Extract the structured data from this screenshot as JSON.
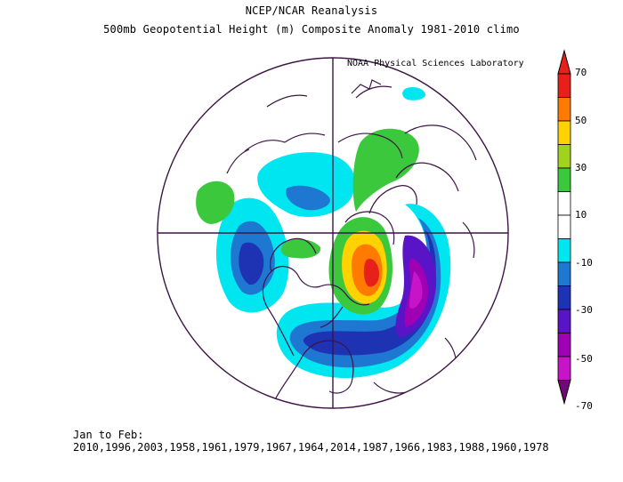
{
  "header": {
    "line1": "NCEP/NCAR Reanalysis",
    "line2": "500mb Geopotential Height (m) Composite Anomaly 1981-2010 climo",
    "credit": "NOAA Physical Sciences Laboratory"
  },
  "footer": {
    "text": "Jan to Feb: 2010,1996,2003,1958,1961,1979,1967,1964,2014,1987,1966,1983,1988,1960,1978"
  },
  "colorbar": {
    "labels": [
      "70",
      "50",
      "30",
      "10",
      "-10",
      "-30",
      "-50",
      "-70"
    ],
    "colors": [
      "#e8201c",
      "#ff7a00",
      "#ffd200",
      "#a0d21e",
      "#3cc83c",
      "#ffffff",
      "#ffffff",
      "#00e6f0",
      "#1e78d2",
      "#1e32b4",
      "#5a14c8",
      "#a000b4",
      "#c814c8"
    ],
    "max_color": "#e8201c",
    "min_color": "#6e0a78"
  },
  "map": {
    "projection": "north-polar-stereographic",
    "border_color": "#3c1446",
    "palette": {
      "light_blue": "#00e6f0",
      "blue": "#1e78d2",
      "dark_blue": "#1e32b4",
      "purple": "#5a14c8",
      "violet": "#a000b4",
      "magenta": "#c814c8",
      "green": "#3cc83c",
      "yellow": "#ffd200",
      "orange": "#ff7a00",
      "red": "#e8201c"
    }
  }
}
